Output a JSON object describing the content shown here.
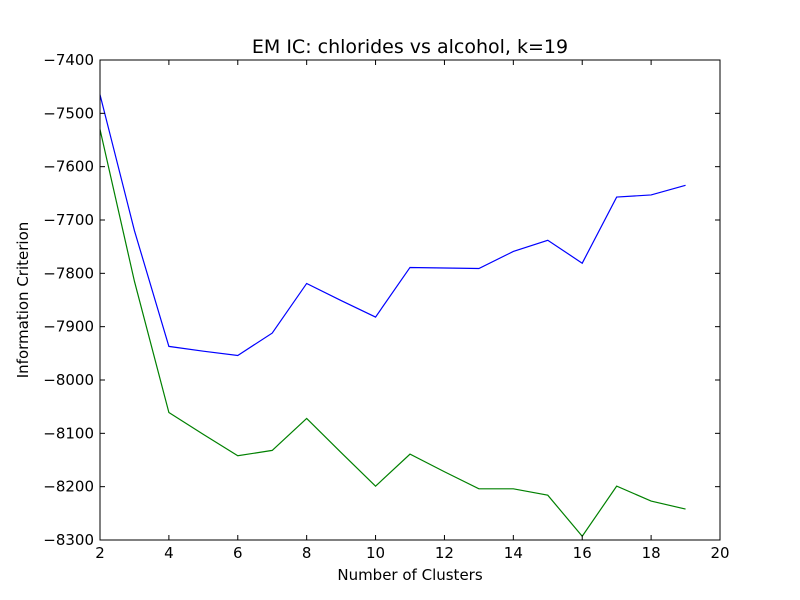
{
  "chart_data": {
    "type": "line",
    "title": "EM IC: chlorides vs alcohol, k=19",
    "xlabel": "Number of Clusters",
    "ylabel": "Information Criterion",
    "xlim": [
      2,
      20
    ],
    "ylim": [
      -8300,
      -7400
    ],
    "xticks": [
      2,
      4,
      6,
      8,
      10,
      12,
      14,
      16,
      18,
      20
    ],
    "yticks": [
      -7400,
      -7500,
      -7600,
      -7700,
      -7800,
      -7900,
      -8000,
      -8100,
      -8200,
      -8300
    ],
    "grid": false,
    "legend": "none",
    "x": [
      2,
      3,
      4,
      5,
      6,
      7,
      8,
      9,
      10,
      11,
      12,
      13,
      14,
      15,
      16,
      17,
      18,
      19
    ],
    "series": [
      {
        "color": "#0000ff",
        "values": [
          -7465,
          -7720,
          -7937,
          -7946,
          -7954,
          -7912,
          -7819,
          -7851,
          -7882,
          -7789,
          -7790,
          -7791,
          -7759,
          -7738,
          -7781,
          -7657,
          -7653,
          -7635
        ]
      },
      {
        "color": "#008000",
        "values": [
          -7530,
          -7815,
          -8061,
          -8102,
          -8142,
          -8132,
          -8072,
          -8136,
          -8199,
          -8139,
          -8172,
          -8204,
          -8204,
          -8216,
          -8293,
          -8199,
          -8227,
          -8242
        ]
      }
    ]
  }
}
